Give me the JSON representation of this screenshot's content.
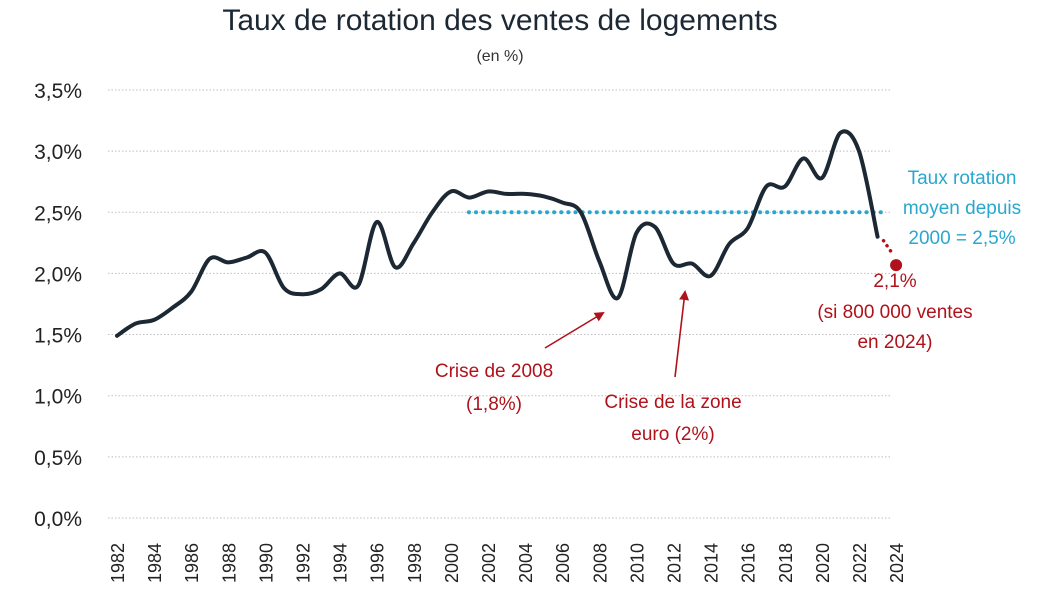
{
  "chart_data": {
    "type": "line",
    "title": "Taux de rotation des ventes de logements",
    "subtitle": "(en %)",
    "xlabel": "",
    "ylabel": "",
    "ylim": [
      0,
      3.5
    ],
    "y_ticks": [
      "0,0%",
      "0,5%",
      "1,0%",
      "1,5%",
      "2,0%",
      "2,5%",
      "3,0%",
      "3,5%"
    ],
    "y_tick_values": [
      0,
      0.5,
      1.0,
      1.5,
      2.0,
      2.5,
      3.0,
      3.5
    ],
    "x_ticks": [
      "1982",
      "1984",
      "1986",
      "1988",
      "1990",
      "1992",
      "1994",
      "1996",
      "1998",
      "2000",
      "2002",
      "2004",
      "2006",
      "2008",
      "2010",
      "2012",
      "2014",
      "2016",
      "2018",
      "2020",
      "2022",
      "2024"
    ],
    "grid": true,
    "series": [
      {
        "name": "Taux de rotation",
        "color": "#1c2833",
        "x": [
          1982,
          1983,
          1984,
          1985,
          1986,
          1987,
          1988,
          1989,
          1990,
          1991,
          1992,
          1993,
          1994,
          1995,
          1996,
          1997,
          1998,
          1999,
          2000,
          2001,
          2002,
          2003,
          2004,
          2005,
          2006,
          2007,
          2008,
          2009,
          2010,
          2011,
          2012,
          2013,
          2014,
          2015,
          2016,
          2017,
          2018,
          2019,
          2020,
          2021,
          2022,
          2023
        ],
        "values": [
          1.49,
          1.59,
          1.62,
          1.72,
          1.85,
          2.12,
          2.09,
          2.13,
          2.17,
          1.88,
          1.83,
          1.87,
          2.0,
          1.9,
          2.42,
          2.05,
          2.25,
          2.5,
          2.67,
          2.62,
          2.67,
          2.65,
          2.65,
          2.63,
          2.58,
          2.5,
          2.1,
          1.8,
          2.33,
          2.38,
          2.08,
          2.08,
          1.98,
          2.24,
          2.37,
          2.71,
          2.71,
          2.94,
          2.78,
          3.15,
          3.0,
          2.3
        ]
      },
      {
        "name": "Taux rotation moyen depuis 2000",
        "color": "#29a8cf",
        "style": "dotted",
        "x": [
          2000,
          2023
        ],
        "values": [
          2.5,
          2.5
        ]
      },
      {
        "name": "Projection 2024",
        "color": "#b0121b",
        "style": "dotted",
        "x": [
          2023,
          2024
        ],
        "values": [
          2.3,
          2.1
        ]
      }
    ],
    "annotations": {
      "avg_line": [
        "Taux rotation",
        "moyen depuis",
        "2000 = 2,5%"
      ],
      "projection": [
        "2,1%",
        "(si 800 000 ventes",
        "en 2024)"
      ],
      "crisis_2008": [
        "Crise de 2008",
        "(1,8%)"
      ],
      "crisis_euro": [
        "Crise de la zone",
        "euro (2%)"
      ]
    }
  }
}
